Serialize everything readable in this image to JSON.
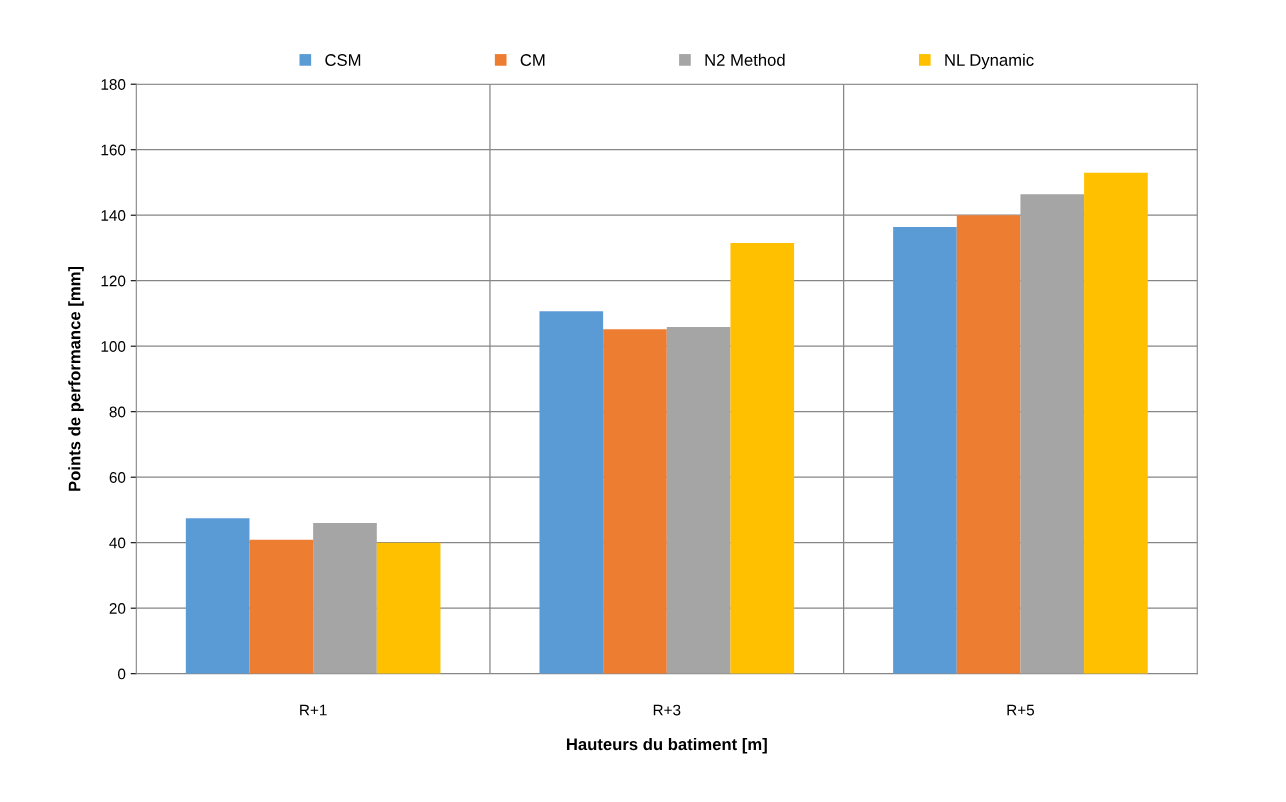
{
  "chart_data": {
    "type": "bar",
    "xlabel": "Hauteurs du batiment [m]",
    "ylabel": "Points de performance [mm]",
    "categories": [
      "R+1",
      "R+3",
      "R+5"
    ],
    "series": [
      {
        "name": "CSM",
        "color": "#5b9bd5",
        "values": [
          47.5,
          110.7,
          136.4
        ]
      },
      {
        "name": "CM",
        "color": "#ed7d31",
        "values": [
          40.9,
          105.2,
          140
        ]
      },
      {
        "name": "N2 Method",
        "color": "#a5a5a5",
        "values": [
          46,
          105.9,
          146.4
        ]
      },
      {
        "name": "NL Dynamic",
        "color": "#ffc000",
        "values": [
          40,
          131.5,
          153
        ]
      }
    ],
    "ylim": [
      0,
      180
    ],
    "yticks": [
      0,
      20,
      40,
      60,
      80,
      100,
      120,
      140,
      160,
      180
    ],
    "grid": true,
    "legend": "top"
  }
}
